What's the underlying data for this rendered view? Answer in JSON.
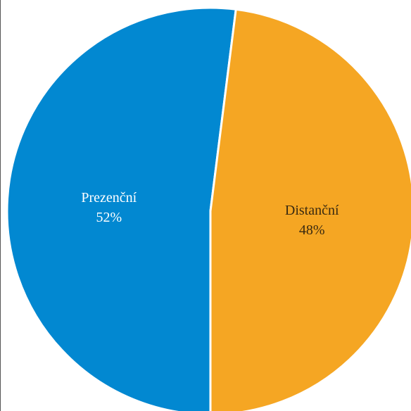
{
  "chart_data": {
    "type": "pie",
    "title": "",
    "slices": [
      {
        "label": "Prezenční",
        "value": 52,
        "value_label": "52%",
        "color": "#0288D1",
        "label_color": "#ffffff"
      },
      {
        "label": "Distanční",
        "value": 48,
        "value_label": "48%",
        "color": "#F5A623",
        "label_color": "#3a2a10"
      }
    ],
    "start_angle_deg": 180,
    "direction": "clockwise",
    "slice_separator_color": "#ffffff"
  }
}
